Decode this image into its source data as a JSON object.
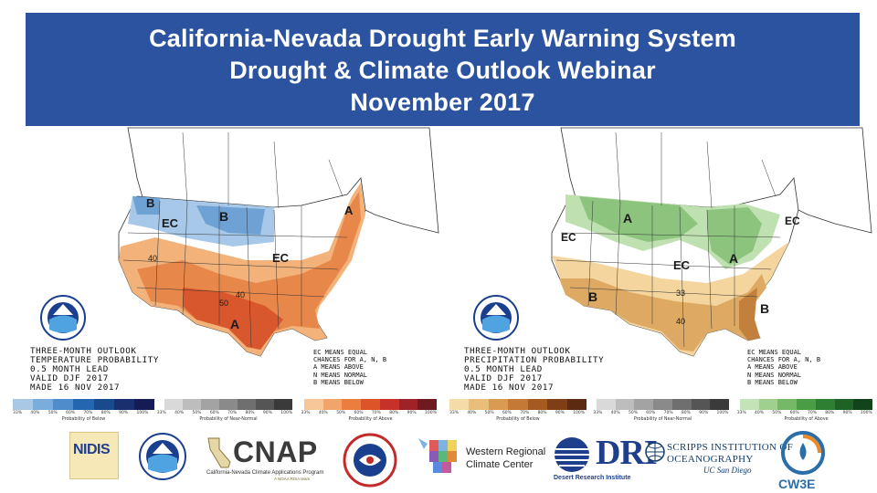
{
  "header": {
    "line1": "California-Nevada Drought Early Warning System",
    "line2": "Drought & Climate Outlook Webinar",
    "line3": "November 2017",
    "background": "#2b53a0"
  },
  "temperature_map": {
    "caption": "THREE-MONTH OUTLOOK\nTEMPERATURE PROBABILITY\n0.5 MONTH LEAD\nVALID DJF 2017\nMADE 16 NOV 2017",
    "ec_note": "EC MEANS EQUAL\nCHANCES FOR A, N, B\nA MEANS ABOVE\nN MEANS NORMAL\nB MEANS BELOW",
    "labels": [
      "B",
      "EC",
      "B",
      "EC",
      "A",
      "40",
      "40",
      "50",
      "A",
      "EC"
    ],
    "colors": {
      "below_light": "#a7c8e8",
      "below_mid": "#6ea2d4",
      "above_light": "#f2b27a",
      "above_mid": "#e8874a",
      "above_dark": "#d9572d"
    }
  },
  "precipitation_map": {
    "caption": "THREE-MONTH OUTLOOK\nPRECIPITATION PROBABILITY\n0.5 MONTH LEAD\nVALID DJF 2017\nMADE 16 NOV 2017",
    "ec_note": "EC MEANS EQUAL\nCHANCES FOR A, N, B\nA MEANS ABOVE\nN MEANS NORMAL\nB MEANS BELOW",
    "labels": [
      "A",
      "EC",
      "EC",
      "A",
      "EC",
      "B",
      "33",
      "40",
      "B"
    ],
    "colors": {
      "above_light": "#bfe0b0",
      "above_mid": "#8cc47e",
      "below_light": "#f3d59d",
      "below_mid": "#deaa63",
      "below_dark": "#c2803c"
    }
  },
  "legend_left": {
    "ticks": [
      "33%",
      "40%",
      "50%",
      "60%",
      "70%",
      "80%",
      "90%",
      "100%",
      "33%",
      "40%",
      "50%",
      "60%",
      "70%",
      "80%",
      "90%",
      "100%",
      "33%",
      "40%",
      "50%",
      "60%",
      "70%",
      "80%",
      "90%",
      "100%"
    ],
    "titles": [
      "Probability of Below",
      "Probability of Near-Normal",
      "Probability of Above"
    ],
    "below_colors": [
      "#a9c8e6",
      "#7aaddb",
      "#4f8ccc",
      "#2566b0",
      "#1a4a8e",
      "#1a2f6e",
      "#151c55"
    ],
    "normal_colors": [
      "#d9d9d9",
      "#bdbdbd",
      "#a3a3a3",
      "#8a8a8a",
      "#6f6f6f",
      "#555555",
      "#3a3a3a"
    ],
    "above_colors": [
      "#f7c79a",
      "#f2a56a",
      "#eb7d3f",
      "#dc5428",
      "#c7312a",
      "#9e2228",
      "#6e1a1e"
    ]
  },
  "legend_right": {
    "ticks": [
      "33%",
      "40%",
      "50%",
      "60%",
      "70%",
      "80%",
      "90%",
      "100%",
      "33%",
      "40%",
      "50%",
      "60%",
      "70%",
      "80%",
      "90%",
      "100%",
      "33%",
      "40%",
      "50%",
      "60%",
      "70%",
      "80%",
      "90%",
      "100%"
    ],
    "titles": [
      "Probability of Below",
      "Probability of Near-Normal",
      "Probability of Above"
    ],
    "below_colors": [
      "#f4dba8",
      "#e9bd7a",
      "#d99a52",
      "#c47a36",
      "#a55a22",
      "#7e3f16",
      "#5c2a10"
    ],
    "normal_colors": [
      "#d9d9d9",
      "#bdbdbd",
      "#a3a3a3",
      "#8a8a8a",
      "#6f6f6f",
      "#555555",
      "#3a3a3a"
    ],
    "above_colors": [
      "#c4e3b6",
      "#9fd08e",
      "#74b868",
      "#4a9c45",
      "#2f7f32",
      "#1e6226",
      "#12441a"
    ]
  },
  "logos": {
    "nidis": "NIDIS",
    "noaa": "NOAA",
    "cnap": "CNAP",
    "cnap_sub": "California-Nevada Climate Applications Program",
    "cnap_sub2": "A NOAA RISA team",
    "wrcc_line1": "Western Regional",
    "wrcc_line2": "Climate Center",
    "dri": "DRI",
    "dri_sub": "Desert Research Institute",
    "scripps_1": "SCRIPPS INSTITUTION OF",
    "scripps_2": "OCEANOGRAPHY",
    "scripps_3": "UC San Diego",
    "cw3e": "CW3E"
  }
}
